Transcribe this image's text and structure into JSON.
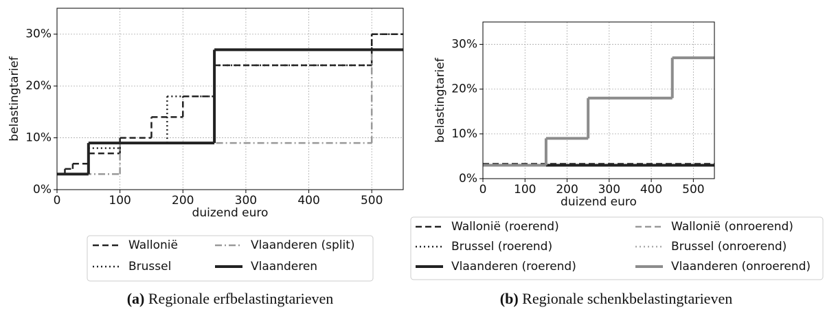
{
  "chart_data": [
    {
      "type": "step",
      "xlabel": "duizend euro",
      "ylabel": "belastingtarief",
      "caption_label": "(a)",
      "caption": "Regionale erfbelastingtarieven",
      "xlim": [
        0,
        550
      ],
      "xticks": [
        0,
        100,
        200,
        300,
        400,
        500
      ],
      "ylim": [
        0,
        35
      ],
      "yticks": [
        {
          "value": 0,
          "label": "0%"
        },
        {
          "value": 10,
          "label": "10%"
        },
        {
          "value": 20,
          "label": "20%"
        },
        {
          "value": 30,
          "label": "30%"
        }
      ],
      "grid": true,
      "series": [
        {
          "name": "Wallonië",
          "color": "#222222",
          "linestyle": "dashed",
          "x": [
            0,
            12.5,
            25,
            50,
            100,
            150,
            200,
            250,
            500
          ],
          "values": [
            3,
            4,
            5,
            7,
            10,
            14,
            18,
            24,
            30
          ]
        },
        {
          "name": "Brussel",
          "color": "#222222",
          "linestyle": "dotted",
          "x": [
            0,
            50,
            100,
            175,
            250,
            500
          ],
          "values": [
            3,
            8,
            9,
            18,
            24,
            30
          ]
        },
        {
          "name": "Vlaanderen (split)",
          "color": "#999999",
          "linestyle": "dashdot",
          "x": [
            0,
            100,
            500
          ],
          "values": [
            3,
            9,
            27
          ]
        },
        {
          "name": "Vlaanderen",
          "color": "#222222",
          "linestyle": "solid",
          "x": [
            0,
            50,
            250
          ],
          "values": [
            3,
            9,
            27
          ]
        }
      ]
    },
    {
      "type": "step",
      "xlabel": "duizend euro",
      "ylabel": "belastingtarief",
      "caption_label": "(b)",
      "caption": "Regionale schenkbelastingtarieven",
      "xlim": [
        0,
        550
      ],
      "xticks": [
        0,
        100,
        200,
        300,
        400,
        500
      ],
      "ylim": [
        0,
        35
      ],
      "yticks": [
        {
          "value": 0,
          "label": "0%"
        },
        {
          "value": 10,
          "label": "10%"
        },
        {
          "value": 20,
          "label": "20%"
        },
        {
          "value": 30,
          "label": "30%"
        }
      ],
      "grid": true,
      "series": [
        {
          "name": "Wallonië (roerend)",
          "color": "#222222",
          "linestyle": "dashed",
          "x": [
            0
          ],
          "values": [
            3.3
          ]
        },
        {
          "name": "Brussel (roerend)",
          "color": "#222222",
          "linestyle": "dotted",
          "x": [
            0
          ],
          "values": [
            3
          ]
        },
        {
          "name": "Vlaanderen (roerend)",
          "color": "#222222",
          "linestyle": "solid",
          "x": [
            0
          ],
          "values": [
            3
          ]
        },
        {
          "name": "Wallonië (onroerend)",
          "color": "#999999",
          "linestyle": "dashed",
          "x": [
            0,
            150,
            250,
            450
          ],
          "values": [
            3,
            9,
            18,
            27
          ]
        },
        {
          "name": "Brussel (onroerend)",
          "color": "#aaaaaa",
          "linestyle": "dotted",
          "x": [
            0,
            150,
            250,
            450
          ],
          "values": [
            3,
            9,
            18,
            27
          ]
        },
        {
          "name": "Vlaanderen (onroerend)",
          "color": "#8c8c8c",
          "linestyle": "solid",
          "x": [
            0,
            150,
            250,
            450
          ],
          "values": [
            3,
            9,
            18,
            27
          ]
        }
      ]
    }
  ]
}
